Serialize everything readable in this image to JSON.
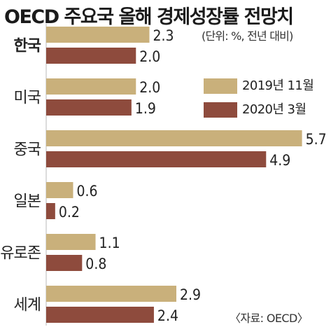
{
  "title": "OECD 주요국 올해 경제성장률 전망치",
  "unit_note": "(단위: %, 전년 대비)",
  "source_note": "〈자료: OECD〉",
  "chart_data": {
    "type": "bar",
    "orientation": "horizontal",
    "categories": [
      "한국",
      "미국",
      "중국",
      "일본",
      "유로존",
      "세계"
    ],
    "highlight_category": "한국",
    "series": [
      {
        "name": "2019년 11월",
        "values": [
          2.3,
          2.0,
          5.7,
          0.6,
          1.1,
          2.9
        ]
      },
      {
        "name": "2020년 3월",
        "values": [
          2.0,
          1.9,
          4.9,
          0.2,
          0.8,
          2.4
        ]
      }
    ],
    "value_labels": [
      [
        "2.3",
        "2.0",
        "5.7",
        "0.6",
        "1.1",
        "2.9"
      ],
      [
        "2.0",
        "1.9",
        "4.9",
        "0.2",
        "0.8",
        "2.4"
      ]
    ],
    "xlim": [
      0,
      5.8
    ],
    "grid": false,
    "legend_position": "right",
    "colors": {
      "series_2019": "#c9b07b",
      "series_2020": "#8e4b3d",
      "axis": "#b9b9b9"
    }
  }
}
